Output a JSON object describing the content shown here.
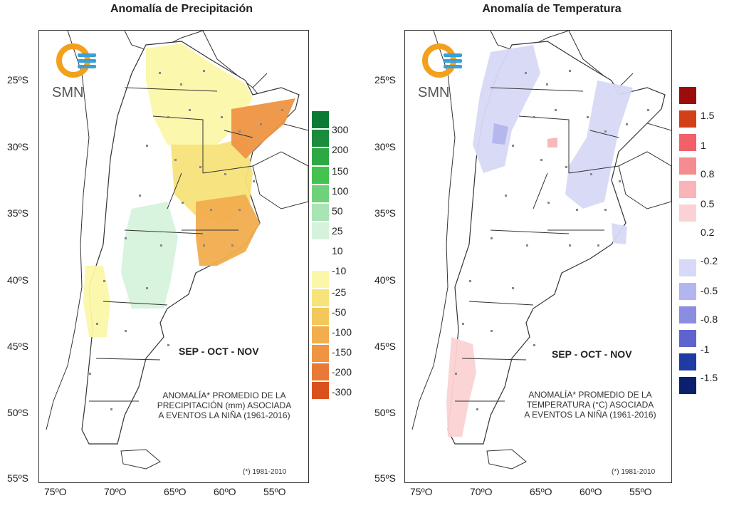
{
  "left_panel": {
    "title": "Anomalía de Precipitación",
    "logo_text": "SMN",
    "season": "SEP - OCT - NOV",
    "note_lines": [
      "ANOMALÍA* PROMEDIO DE LA",
      "PRECIPITACIÓN (mm) ASOCIADA",
      "A EVENTOS LA NIÑA (1961-2016)"
    ],
    "reference": "(*) 1981-2010",
    "colorbar_positive": [
      {
        "label": "300",
        "color": "#0b7a34"
      },
      {
        "label": "200",
        "color": "#1a8c3c"
      },
      {
        "label": "150",
        "color": "#2ea844"
      },
      {
        "label": "100",
        "color": "#45c24f"
      },
      {
        "label": "50",
        "color": "#6fd27a"
      },
      {
        "label": "25",
        "color": "#a9e4b4"
      },
      {
        "label": "10",
        "color": "#d6f2dc"
      }
    ],
    "colorbar_negative": [
      {
        "label": "-10",
        "color": "#fbf7a8"
      },
      {
        "label": "-25",
        "color": "#f7e37a"
      },
      {
        "label": "-50",
        "color": "#f3c85a"
      },
      {
        "label": "-100",
        "color": "#f1ad4e"
      },
      {
        "label": "-150",
        "color": "#ee9443"
      },
      {
        "label": "-200",
        "color": "#e87a37"
      },
      {
        "label": "-300",
        "color": "#d9521d"
      }
    ]
  },
  "right_panel": {
    "title": "Anomalía de Temperatura",
    "logo_text": "SMN",
    "season": "SEP - OCT - NOV",
    "note_lines": [
      "ANOMALÍA* PROMEDIO DE LA",
      "TEMPERATURA (°C) ASOCIADA",
      "A EVENTOS LA NIÑA (1961-2016)"
    ],
    "reference": "(*) 1981-2010",
    "colorbar_positive": [
      {
        "label": "1.5",
        "color": "#9b0d0d"
      },
      {
        "label": "1",
        "color": "#d2401a"
      },
      {
        "label": "0.8",
        "color": "#f2606a"
      },
      {
        "label": "0.5",
        "color": "#f48c92"
      },
      {
        "label": "0.2",
        "color": "#f8b4b8"
      },
      {
        "label": "",
        "color": "#fbd2d4"
      }
    ],
    "colorbar_negative": [
      {
        "label": "-0.2",
        "color": "#d7d9f6"
      },
      {
        "label": "-0.5",
        "color": "#b3b6ee"
      },
      {
        "label": "-0.8",
        "color": "#8a8de2"
      },
      {
        "label": "-1",
        "color": "#5f63cd"
      },
      {
        "label": "-1.5",
        "color": "#1e3aa3"
      },
      {
        "label": "",
        "color": "#0a1f6e"
      }
    ]
  },
  "axes": {
    "lat_labels": [
      "25ºS",
      "30ºS",
      "35ºS",
      "40ºS",
      "45ºS",
      "50ºS",
      "55ºS"
    ],
    "lon_labels": [
      "75ºO",
      "70ºO",
      "65ºO",
      "60ºO",
      "55ºO"
    ]
  },
  "colors": {
    "logo_orange": "#f2a11c",
    "logo_blue": "#3aa0d8",
    "country_fill": "#ffffff",
    "border": "#333333",
    "station": "#888888"
  }
}
